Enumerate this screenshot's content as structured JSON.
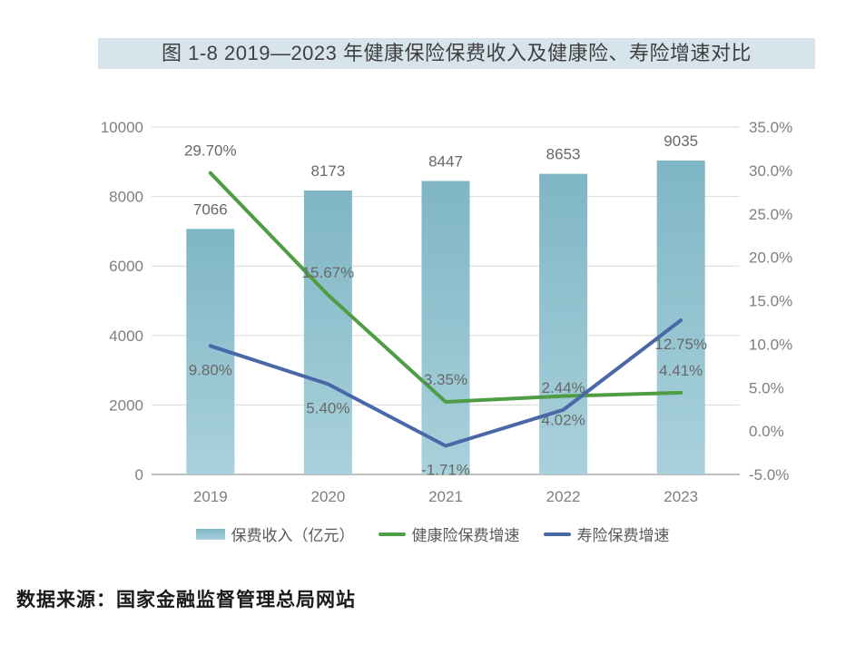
{
  "page": {
    "title": "图 1-8  2019—2023 年健康保险保费收入及健康险、寿险增速对比",
    "source_note": "数据来源：国家金融监督管理总局网站"
  },
  "colors": {
    "title_bg": "#d8e4ec",
    "title_text": "#3f3f3f",
    "bar_top": "#7fb6c5",
    "bar_bottom": "#a9d1db",
    "health_line": "#4e9d45",
    "life_line": "#4a68a8",
    "grid": "#d9d9d9",
    "baseline": "#bfbfbf",
    "axis_text": "#7f7f7f",
    "label_text": "#686868"
  },
  "chart_data": {
    "type": "bar+line",
    "title": "图 1-8  2019—2023 年健康保险保费收入及健康险、寿险增速对比",
    "categories": [
      "2019",
      "2020",
      "2021",
      "2022",
      "2023"
    ],
    "bar_series": {
      "name": "保费收入（亿元）",
      "axis": "left",
      "values": [
        7066,
        8173,
        8447,
        8653,
        9035
      ],
      "labels": [
        "7066",
        "8173",
        "8447",
        "8653",
        "9035"
      ]
    },
    "line_series": [
      {
        "name": "健康险保费增速",
        "axis": "right",
        "color_key": "health_line",
        "values": [
          29.7,
          15.67,
          3.35,
          4.02,
          4.41
        ],
        "labels": [
          "29.70%",
          "15.67%",
          "3.35%",
          "4.02%",
          "4.41%"
        ],
        "label_side": [
          "above",
          "above",
          "above",
          "below",
          "above"
        ]
      },
      {
        "name": "寿险保费增速",
        "axis": "right",
        "color_key": "life_line",
        "values": [
          9.8,
          5.4,
          -1.71,
          2.44,
          12.75
        ],
        "labels": [
          "9.80%",
          "5.40%",
          "-1.71%",
          "2.44%",
          "12.75%"
        ],
        "label_side": [
          "below",
          "below",
          "below",
          "above",
          "below"
        ]
      }
    ],
    "left_axis": {
      "min": 0,
      "max": 10000,
      "ticks": [
        "0",
        "2000",
        "4000",
        "6000",
        "8000",
        "10000"
      ]
    },
    "right_axis": {
      "min": -5,
      "max": 35,
      "ticks": [
        "-5.0%",
        "0.0%",
        "5.0%",
        "10.0%",
        "15.0%",
        "20.0%",
        "25.0%",
        "30.0%",
        "35.0%"
      ]
    },
    "grid": true,
    "legend_position": "bottom"
  }
}
